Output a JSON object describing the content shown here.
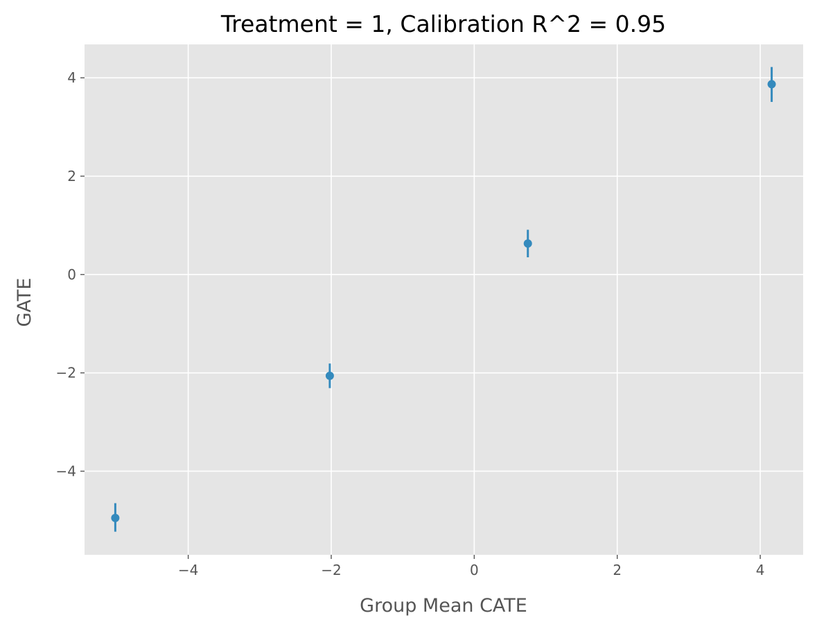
{
  "chart_data": {
    "type": "scatter",
    "title": "Treatment = 1, Calibration R^2 = 0.95",
    "xlabel": "Group Mean CATE",
    "ylabel": "GATE",
    "xlim": [
      -5.45,
      4.6
    ],
    "ylim": [
      -5.7,
      4.68
    ],
    "x_ticks": [
      -4,
      -2,
      0,
      2,
      4
    ],
    "y_ticks": [
      -4,
      -2,
      0,
      2,
      4
    ],
    "x_tick_labels": [
      "−4",
      "−2",
      "0",
      "2",
      "4"
    ],
    "y_tick_labels": [
      "−4",
      "−2",
      "0",
      "2",
      "4"
    ],
    "grid": true,
    "series": [
      {
        "color": "#348abd",
        "points": [
          {
            "x": -5.02,
            "y": -4.95,
            "err_low": -5.23,
            "err_high": -4.65
          },
          {
            "x": -2.02,
            "y": -2.06,
            "err_low": -2.31,
            "err_high": -1.81
          },
          {
            "x": 0.75,
            "y": 0.63,
            "err_low": 0.35,
            "err_high": 0.91
          },
          {
            "x": 4.16,
            "y": 3.87,
            "err_low": 3.51,
            "err_high": 4.22
          }
        ]
      }
    ],
    "background_color": "#e5e5e5",
    "grid_color": "#ffffff"
  }
}
